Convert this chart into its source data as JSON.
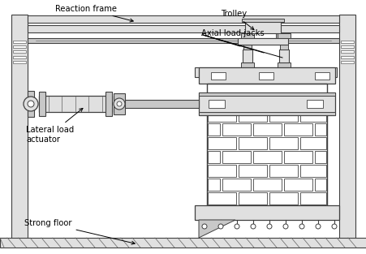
{
  "bg_color": "#ffffff",
  "lc": "#404040",
  "lc2": "#606060",
  "gray1": "#c8c8c8",
  "gray2": "#e0e0e0",
  "gray3": "#b0b0b0",
  "labels": {
    "reaction_frame": "Reaction frame",
    "trolley": "Trolley",
    "axial_load_jacks": "Axial load jacks",
    "lateral_load_actuator": "Lateral load\nactuator",
    "strong_floor": "Strong floor"
  },
  "fig_width": 4.52,
  "fig_height": 3.13,
  "dpi": 100
}
